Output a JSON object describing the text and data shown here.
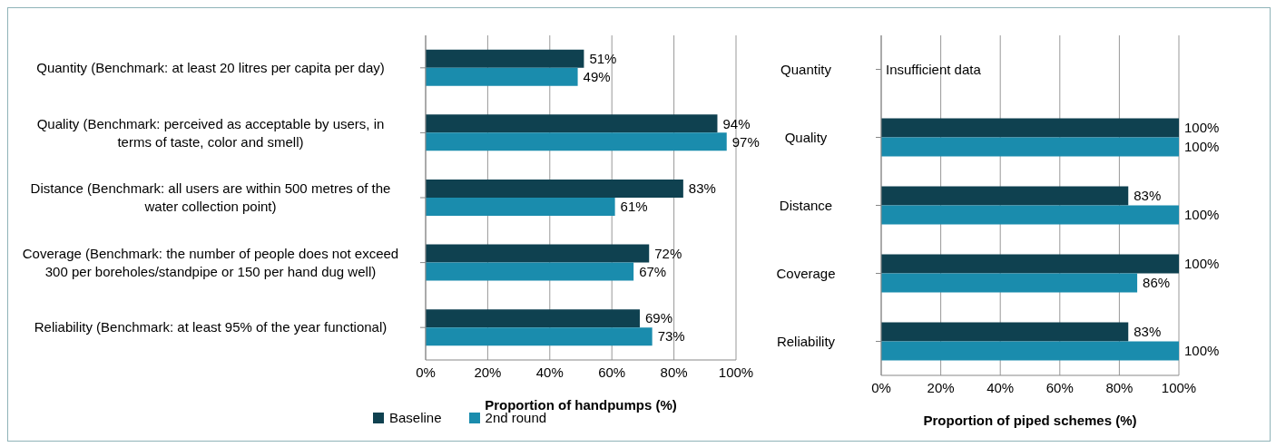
{
  "chart_data": [
    {
      "type": "bar",
      "orientation": "horizontal",
      "categories": [
        "Quantity (Benchmark: at least 20 litres per capita per day)",
        "Quality (Benchmark: perceived as acceptable by users, in terms of taste, color and smell)",
        "Distance (Benchmark: all users are within 500 metres of the water collection point)",
        "Coverage (Benchmark: the number of people does not exceed 300 per boreholes/standpipe or 150 per hand dug well)",
        "Reliability (Benchmark: at least 95% of the year functional)"
      ],
      "series": [
        {
          "name": "Baseline",
          "color": "#0f4150",
          "values": [
            51,
            94,
            83,
            72,
            69
          ],
          "value_labels": [
            "51%",
            "94%",
            "83%",
            "72%",
            "69%"
          ]
        },
        {
          "name": "2nd round",
          "color": "#1a8cad",
          "values": [
            49,
            97,
            61,
            67,
            73
          ],
          "value_labels": [
            "49%",
            "97%",
            "61%",
            "67%",
            "73%"
          ]
        }
      ],
      "xlabel": "Proportion of handpumps (%)",
      "xlim": [
        0,
        100
      ],
      "xticks": [
        {
          "value": 0,
          "label": "0%"
        },
        {
          "value": 20,
          "label": "20%"
        },
        {
          "value": 40,
          "label": "40%"
        },
        {
          "value": 60,
          "label": "60%"
        },
        {
          "value": 80,
          "label": "80%"
        },
        {
          "value": 100,
          "label": "100%"
        }
      ],
      "grid": "x",
      "legend": "bottom left"
    },
    {
      "type": "bar",
      "orientation": "horizontal",
      "categories": [
        "Quantity",
        "Quality",
        "Distance",
        "Coverage",
        "Reliability"
      ],
      "series": [
        {
          "color": "#0f4150",
          "values": [
            null,
            100,
            83,
            100,
            83
          ],
          "value_labels": [
            null,
            "100%",
            "83%",
            "100%",
            "83%"
          ]
        },
        {
          "color": "#1a8cad",
          "values": [
            null,
            100,
            100,
            86,
            100
          ],
          "value_labels": [
            null,
            "100%",
            "100%",
            "86%",
            "100%"
          ]
        }
      ],
      "xlabel": "Proportion of piped schemes (%)",
      "xlim": [
        0,
        100
      ],
      "xticks": [
        {
          "value": 0,
          "label": "0%"
        },
        {
          "value": 20,
          "label": "20%"
        },
        {
          "value": 40,
          "label": "40%"
        },
        {
          "value": 60,
          "label": "60%"
        },
        {
          "value": 80,
          "label": "80%"
        },
        {
          "value": 100,
          "label": "100%"
        }
      ],
      "grid": "x",
      "annotations": [
        "Insufficient data"
      ]
    }
  ]
}
